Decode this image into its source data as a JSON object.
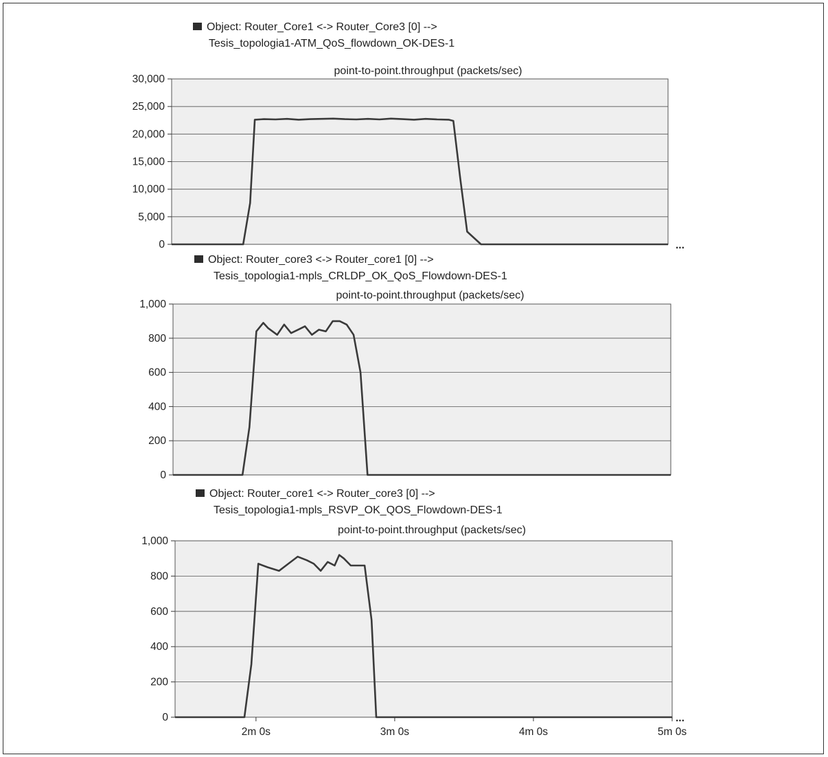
{
  "colors": {
    "plot_bg": "#efefef",
    "line": "#3a3a3a",
    "grid": "#555555",
    "swatch": "#2d2d2d"
  },
  "more_marker": "...",
  "chart_data": [
    {
      "type": "line",
      "legend_label": "Object: Router_Core1 <-> Router_Core3 [0] -->",
      "legend_label2": "Tesis_topologia1-ATM_QoS_flowdown_OK-DES-1",
      "title": "point-to-point.throughput (packets/sec)",
      "ylim": [
        0,
        30000
      ],
      "y_ticks": [
        "0",
        "5,000",
        "10,000",
        "15,000",
        "20,000",
        "25,000",
        "30,000"
      ],
      "y_tick_values": [
        0,
        5000,
        10000,
        15000,
        20000,
        25000,
        30000
      ],
      "xlim": [
        85,
        300
      ],
      "grid": true,
      "x": [
        85,
        116,
        119,
        121,
        125,
        130,
        135,
        140,
        145,
        150,
        155,
        160,
        165,
        170,
        175,
        180,
        185,
        190,
        195,
        200,
        205,
        207,
        210,
        213,
        219,
        300
      ],
      "y": [
        0,
        0,
        7500,
        22600,
        22700,
        22650,
        22750,
        22600,
        22700,
        22750,
        22800,
        22700,
        22650,
        22750,
        22650,
        22800,
        22700,
        22600,
        22750,
        22650,
        22600,
        22400,
        12000,
        2300,
        0,
        0
      ]
    },
    {
      "type": "line",
      "legend_label": "Object: Router_core3 <-> Router_core1 [0] -->",
      "legend_label2": "Tesis_topologia1-mpls_CRLDP_OK_QoS_Flowdown-DES-1",
      "title": "point-to-point.throughput (packets/sec)",
      "ylim": [
        0,
        1000
      ],
      "y_ticks": [
        "0",
        "200",
        "400",
        "600",
        "800",
        "1,000"
      ],
      "y_tick_values": [
        0,
        200,
        400,
        600,
        800,
        1000
      ],
      "xlim": [
        85,
        300
      ],
      "grid": true,
      "x": [
        85,
        115,
        118,
        121,
        124,
        126,
        130,
        133,
        136,
        139,
        142,
        145,
        148,
        151,
        154,
        157,
        160,
        163,
        166,
        169,
        171,
        300
      ],
      "y": [
        0,
        0,
        280,
        840,
        890,
        860,
        820,
        880,
        830,
        850,
        870,
        820,
        850,
        840,
        900,
        900,
        880,
        820,
        600,
        0,
        0,
        0
      ]
    },
    {
      "type": "line",
      "legend_label": "Object: Router_core1 <-> Router_core3 [0] -->",
      "legend_label2": "Tesis_topologia1-mpls_RSVP_OK_QOS_Flowdown-DES-1",
      "title": "point-to-point.throughput (packets/sec)",
      "ylim": [
        0,
        1000
      ],
      "y_ticks": [
        "0",
        "200",
        "400",
        "600",
        "800",
        "1,000"
      ],
      "y_tick_values": [
        0,
        200,
        400,
        600,
        800,
        1000
      ],
      "xlim": [
        85,
        300
      ],
      "grid": true,
      "x_ticks": [
        "2m 0s",
        "3m 0s",
        "4m 0s",
        "5m 0s"
      ],
      "x_tick_values": [
        120,
        180,
        240,
        300
      ],
      "x": [
        85,
        115,
        118,
        121,
        125,
        130,
        134,
        138,
        142,
        145,
        148,
        151,
        154,
        156,
        158,
        161,
        164,
        167,
        170,
        172,
        300
      ],
      "y": [
        0,
        0,
        300,
        870,
        850,
        830,
        870,
        910,
        890,
        870,
        830,
        880,
        860,
        920,
        900,
        860,
        860,
        860,
        550,
        0,
        0
      ]
    }
  ]
}
